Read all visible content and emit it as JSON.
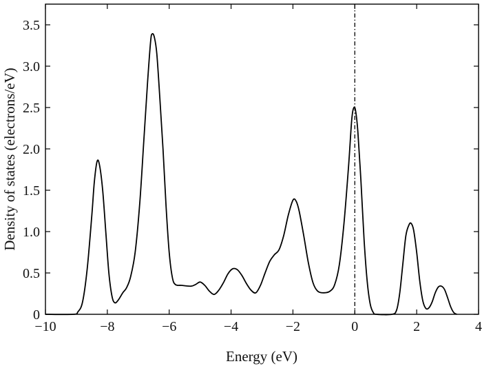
{
  "chart_data": {
    "type": "line",
    "xlabel": "Energy (eV)",
    "ylabel": "Density of states (electrons/eV)",
    "xlim": [
      -10,
      4
    ],
    "ylim": [
      0,
      3.75
    ],
    "x_ticks": [
      -10,
      -8,
      -6,
      -4,
      -2,
      0,
      2,
      4
    ],
    "x_tick_labels": [
      "−10",
      "−8",
      "−6",
      "−4",
      "−2",
      "0",
      "2",
      "4"
    ],
    "y_ticks": [
      0,
      0.5,
      1.0,
      1.5,
      2.0,
      2.5,
      3.0,
      3.5
    ],
    "y_tick_labels": [
      "0",
      "0.5",
      "1.0",
      "1.5",
      "2.0",
      "2.5",
      "3.0",
      "3.5"
    ],
    "fermi_level_x": 0,
    "grid": false,
    "series": [
      {
        "color": "#000000",
        "points": [
          [
            -10,
            0
          ],
          [
            -9.1,
            0
          ],
          [
            -8.95,
            0.03
          ],
          [
            -8.8,
            0.15
          ],
          [
            -8.65,
            0.55
          ],
          [
            -8.5,
            1.2
          ],
          [
            -8.42,
            1.6
          ],
          [
            -8.33,
            1.85
          ],
          [
            -8.25,
            1.8
          ],
          [
            -8.15,
            1.5
          ],
          [
            -8.05,
            1.0
          ],
          [
            -7.95,
            0.5
          ],
          [
            -7.85,
            0.22
          ],
          [
            -7.76,
            0.14
          ],
          [
            -7.65,
            0.17
          ],
          [
            -7.5,
            0.26
          ],
          [
            -7.38,
            0.32
          ],
          [
            -7.25,
            0.45
          ],
          [
            -7.1,
            0.75
          ],
          [
            -6.95,
            1.35
          ],
          [
            -6.82,
            2.1
          ],
          [
            -6.7,
            2.8
          ],
          [
            -6.6,
            3.3
          ],
          [
            -6.55,
            3.39
          ],
          [
            -6.48,
            3.35
          ],
          [
            -6.4,
            3.15
          ],
          [
            -6.3,
            2.6
          ],
          [
            -6.2,
            2.0
          ],
          [
            -6.1,
            1.3
          ],
          [
            -6.0,
            0.75
          ],
          [
            -5.9,
            0.45
          ],
          [
            -5.8,
            0.36
          ],
          [
            -5.6,
            0.35
          ],
          [
            -5.3,
            0.34
          ],
          [
            -5.15,
            0.36
          ],
          [
            -5.0,
            0.39
          ],
          [
            -4.85,
            0.35
          ],
          [
            -4.7,
            0.28
          ],
          [
            -4.55,
            0.24
          ],
          [
            -4.4,
            0.29
          ],
          [
            -4.25,
            0.38
          ],
          [
            -4.1,
            0.49
          ],
          [
            -3.95,
            0.55
          ],
          [
            -3.8,
            0.54
          ],
          [
            -3.65,
            0.47
          ],
          [
            -3.5,
            0.37
          ],
          [
            -3.35,
            0.29
          ],
          [
            -3.2,
            0.26
          ],
          [
            -3.05,
            0.35
          ],
          [
            -2.9,
            0.5
          ],
          [
            -2.75,
            0.64
          ],
          [
            -2.6,
            0.72
          ],
          [
            -2.45,
            0.78
          ],
          [
            -2.3,
            0.95
          ],
          [
            -2.15,
            1.2
          ],
          [
            -2.0,
            1.38
          ],
          [
            -1.9,
            1.37
          ],
          [
            -1.8,
            1.25
          ],
          [
            -1.65,
            0.95
          ],
          [
            -1.5,
            0.62
          ],
          [
            -1.35,
            0.38
          ],
          [
            -1.2,
            0.28
          ],
          [
            -1.0,
            0.26
          ],
          [
            -0.8,
            0.28
          ],
          [
            -0.65,
            0.36
          ],
          [
            -0.5,
            0.6
          ],
          [
            -0.35,
            1.1
          ],
          [
            -0.2,
            1.8
          ],
          [
            -0.1,
            2.35
          ],
          [
            -0.03,
            2.5
          ],
          [
            0.03,
            2.45
          ],
          [
            0.1,
            2.2
          ],
          [
            0.2,
            1.6
          ],
          [
            0.3,
            0.9
          ],
          [
            0.4,
            0.4
          ],
          [
            0.5,
            0.12
          ],
          [
            0.6,
            0.02
          ],
          [
            0.7,
            0
          ],
          [
            1.2,
            0
          ],
          [
            1.35,
            0.05
          ],
          [
            1.45,
            0.25
          ],
          [
            1.55,
            0.6
          ],
          [
            1.65,
            0.95
          ],
          [
            1.75,
            1.08
          ],
          [
            1.82,
            1.1
          ],
          [
            1.9,
            1.02
          ],
          [
            2.0,
            0.75
          ],
          [
            2.1,
            0.4
          ],
          [
            2.2,
            0.16
          ],
          [
            2.3,
            0.07
          ],
          [
            2.4,
            0.08
          ],
          [
            2.5,
            0.15
          ],
          [
            2.6,
            0.26
          ],
          [
            2.7,
            0.33
          ],
          [
            2.8,
            0.34
          ],
          [
            2.9,
            0.3
          ],
          [
            3.0,
            0.2
          ],
          [
            3.1,
            0.09
          ],
          [
            3.2,
            0.02
          ],
          [
            3.3,
            0
          ]
        ]
      }
    ]
  }
}
